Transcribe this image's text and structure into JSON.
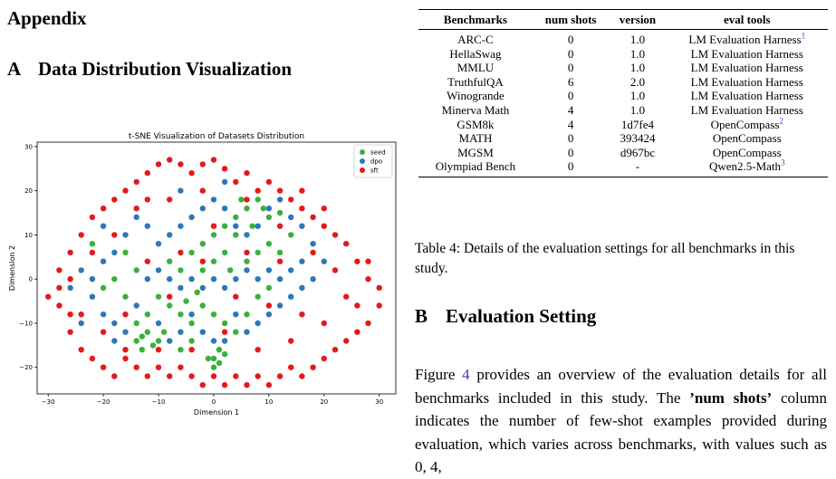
{
  "left": {
    "appendix_heading": "Appendix",
    "section_a": {
      "num": "A",
      "title": "Data Distribution Visualization"
    }
  },
  "chart_data": {
    "type": "scatter",
    "title": "t-SNE Visualization of Datasets Distribution",
    "xlabel": "Dimension 1",
    "ylabel": "Dimension 2",
    "xlim": [
      -32,
      33
    ],
    "ylim": [
      -26,
      31
    ],
    "xticks": [
      -30,
      -20,
      -10,
      0,
      10,
      20,
      30
    ],
    "yticks": [
      -20,
      -10,
      0,
      10,
      20,
      30
    ],
    "grid": false,
    "legend_position": "top-right",
    "series": [
      {
        "name": "seed",
        "color": "#3bb03b",
        "points": [
          [
            -14,
            -14
          ],
          [
            -13,
            -13
          ],
          [
            -12,
            -12
          ],
          [
            -11,
            -15
          ],
          [
            -10,
            -14
          ],
          [
            -13,
            -16
          ],
          [
            -9,
            -12
          ],
          [
            0,
            -18
          ],
          [
            1,
            -19
          ],
          [
            0,
            -20
          ],
          [
            -1,
            -18
          ],
          [
            2,
            -17
          ],
          [
            1,
            -16
          ],
          [
            -4,
            -10
          ],
          [
            -6,
            -8
          ],
          [
            -8,
            -6
          ],
          [
            -10,
            -4
          ],
          [
            -5,
            -5
          ],
          [
            -3,
            -3
          ],
          [
            -6,
            2
          ],
          [
            -8,
            4
          ],
          [
            -4,
            6
          ],
          [
            -2,
            8
          ],
          [
            0,
            10
          ],
          [
            2,
            12
          ],
          [
            4,
            14
          ],
          [
            6,
            16
          ],
          [
            8,
            18
          ],
          [
            5,
            18
          ],
          [
            9,
            16
          ],
          [
            10,
            14
          ],
          [
            12,
            15
          ],
          [
            7,
            12
          ],
          [
            4,
            10
          ],
          [
            2,
            6
          ],
          [
            0,
            4
          ],
          [
            -2,
            2
          ],
          [
            3,
            2
          ],
          [
            6,
            4
          ],
          [
            8,
            6
          ],
          [
            10,
            8
          ],
          [
            12,
            6
          ],
          [
            -16,
            6
          ],
          [
            -14,
            2
          ],
          [
            -18,
            0
          ],
          [
            -16,
            -4
          ],
          [
            -20,
            -2
          ],
          [
            -12,
            -8
          ],
          [
            -2,
            -6
          ],
          [
            0,
            -8
          ],
          [
            2,
            -10
          ],
          [
            4,
            -12
          ],
          [
            6,
            -8
          ],
          [
            8,
            -4
          ],
          [
            10,
            -2
          ],
          [
            -4,
            -14
          ],
          [
            -6,
            -16
          ],
          [
            14,
            10
          ],
          [
            -22,
            8
          ],
          [
            -14,
            -10
          ]
        ]
      },
      {
        "name": "dpo",
        "color": "#2e77b8",
        "points": [
          [
            -24,
            2
          ],
          [
            -22,
            0
          ],
          [
            -20,
            4
          ],
          [
            -18,
            6
          ],
          [
            -22,
            -4
          ],
          [
            -20,
            -8
          ],
          [
            -18,
            -10
          ],
          [
            -16,
            -12
          ],
          [
            -14,
            -6
          ],
          [
            -12,
            0
          ],
          [
            -10,
            2
          ],
          [
            -8,
            0
          ],
          [
            -6,
            -2
          ],
          [
            -4,
            0
          ],
          [
            -2,
            -2
          ],
          [
            0,
            0
          ],
          [
            2,
            -2
          ],
          [
            4,
            0
          ],
          [
            6,
            2
          ],
          [
            8,
            0
          ],
          [
            10,
            2
          ],
          [
            12,
            0
          ],
          [
            14,
            2
          ],
          [
            16,
            4
          ],
          [
            -10,
            8
          ],
          [
            -8,
            10
          ],
          [
            -6,
            12
          ],
          [
            -4,
            14
          ],
          [
            -2,
            16
          ],
          [
            0,
            18
          ],
          [
            2,
            16
          ],
          [
            4,
            12
          ],
          [
            6,
            10
          ],
          [
            8,
            12
          ],
          [
            10,
            16
          ],
          [
            12,
            18
          ],
          [
            14,
            14
          ],
          [
            -14,
            14
          ],
          [
            -12,
            12
          ],
          [
            -16,
            10
          ],
          [
            -10,
            -10
          ],
          [
            -8,
            -14
          ],
          [
            -6,
            -12
          ],
          [
            -4,
            -8
          ],
          [
            -2,
            -12
          ],
          [
            0,
            -14
          ],
          [
            2,
            -14
          ],
          [
            4,
            -8
          ],
          [
            6,
            -12
          ],
          [
            8,
            -10
          ],
          [
            10,
            -8
          ],
          [
            12,
            -6
          ],
          [
            14,
            -4
          ],
          [
            16,
            -2
          ],
          [
            18,
            0
          ],
          [
            -24,
            -10
          ],
          [
            -26,
            -2
          ],
          [
            -20,
            12
          ],
          [
            -6,
            20
          ],
          [
            2,
            22
          ],
          [
            16,
            12
          ],
          [
            18,
            8
          ],
          [
            20,
            4
          ],
          [
            -18,
            -14
          ]
        ]
      },
      {
        "name": "sft",
        "color": "#e31a1c",
        "points": [
          [
            -30,
            -4
          ],
          [
            -28,
            2
          ],
          [
            -28,
            -6
          ],
          [
            -26,
            6
          ],
          [
            -26,
            -12
          ],
          [
            -24,
            10
          ],
          [
            -24,
            -16
          ],
          [
            -22,
            14
          ],
          [
            -22,
            -18
          ],
          [
            -20,
            16
          ],
          [
            -20,
            -20
          ],
          [
            -18,
            18
          ],
          [
            -18,
            -22
          ],
          [
            -16,
            20
          ],
          [
            -14,
            22
          ],
          [
            -12,
            24
          ],
          [
            -10,
            26
          ],
          [
            -8,
            27
          ],
          [
            -6,
            26
          ],
          [
            -4,
            24
          ],
          [
            -2,
            26
          ],
          [
            0,
            27
          ],
          [
            2,
            25
          ],
          [
            4,
            22
          ],
          [
            6,
            24
          ],
          [
            8,
            20
          ],
          [
            10,
            22
          ],
          [
            12,
            20
          ],
          [
            14,
            18
          ],
          [
            16,
            16
          ],
          [
            18,
            14
          ],
          [
            20,
            12
          ],
          [
            22,
            10
          ],
          [
            24,
            8
          ],
          [
            26,
            4
          ],
          [
            28,
            0
          ],
          [
            30,
            -2
          ],
          [
            30,
            -6
          ],
          [
            28,
            -10
          ],
          [
            26,
            -12
          ],
          [
            24,
            -14
          ],
          [
            22,
            -16
          ],
          [
            20,
            -18
          ],
          [
            18,
            -20
          ],
          [
            16,
            -22
          ],
          [
            14,
            -20
          ],
          [
            12,
            -22
          ],
          [
            10,
            -24
          ],
          [
            8,
            -22
          ],
          [
            6,
            -24
          ],
          [
            4,
            -22
          ],
          [
            2,
            -24
          ],
          [
            0,
            -22
          ],
          [
            -2,
            -24
          ],
          [
            -4,
            -22
          ],
          [
            -6,
            -20
          ],
          [
            -8,
            -22
          ],
          [
            -10,
            -20
          ],
          [
            -12,
            -22
          ],
          [
            -14,
            -20
          ],
          [
            -16,
            -18
          ],
          [
            -24,
            -8
          ],
          [
            -26,
            0
          ],
          [
            -22,
            6
          ],
          [
            -18,
            10
          ],
          [
            -14,
            16
          ],
          [
            -8,
            18
          ],
          [
            -2,
            20
          ],
          [
            6,
            18
          ],
          [
            12,
            12
          ],
          [
            18,
            6
          ],
          [
            22,
            2
          ],
          [
            24,
            -4
          ],
          [
            20,
            -10
          ],
          [
            14,
            -14
          ],
          [
            8,
            -16
          ],
          [
            2,
            -12
          ],
          [
            -4,
            -16
          ],
          [
            -10,
            -16
          ],
          [
            -16,
            -8
          ],
          [
            -20,
            -12
          ],
          [
            -12,
            4
          ],
          [
            -6,
            6
          ],
          [
            0,
            12
          ],
          [
            6,
            6
          ],
          [
            10,
            -6
          ],
          [
            16,
            -8
          ],
          [
            -8,
            -4
          ],
          [
            -2,
            4
          ],
          [
            4,
            -4
          ],
          [
            12,
            4
          ],
          [
            -26,
            -8
          ],
          [
            -28,
            -2
          ],
          [
            28,
            4
          ],
          [
            26,
            -6
          ],
          [
            20,
            16
          ],
          [
            -16,
            -16
          ],
          [
            16,
            20
          ],
          [
            -12,
            18
          ]
        ]
      }
    ]
  },
  "table": {
    "headers": [
      "Benchmarks",
      "num shots",
      "version",
      "eval tools"
    ],
    "rows": [
      {
        "bench": "ARC-C",
        "shots": "0",
        "version": "1.0",
        "tool": "LM Evaluation Harness",
        "sup": "1"
      },
      {
        "bench": "HellaSwag",
        "shots": "0",
        "version": "1.0",
        "tool": "LM Evaluation Harness",
        "sup": ""
      },
      {
        "bench": "MMLU",
        "shots": "0",
        "version": "1.0",
        "tool": "LM Evaluation Harness",
        "sup": ""
      },
      {
        "bench": "TruthfulQA",
        "shots": "6",
        "version": "2.0",
        "tool": "LM Evaluation Harness",
        "sup": ""
      },
      {
        "bench": "Winogrande",
        "shots": "0",
        "version": "1.0",
        "tool": "LM Evaluation Harness",
        "sup": ""
      },
      {
        "bench": "Minerva Math",
        "shots": "4",
        "version": "1.0",
        "tool": "LM Evaluation Harness",
        "sup": ""
      },
      {
        "bench": "GSM8k",
        "shots": "4",
        "version": "1d7fe4",
        "tool": "OpenCompass",
        "sup": "2"
      },
      {
        "bench": "MATH",
        "shots": "0",
        "version": "393424",
        "tool": "OpenCompass",
        "sup": ""
      },
      {
        "bench": "MGSM",
        "shots": "0",
        "version": "d967bc",
        "tool": "OpenCompass",
        "sup": ""
      },
      {
        "bench": "Olympiad Bench",
        "shots": "0",
        "version": "-",
        "tool": "Qwen2.5-Math",
        "sup": "3"
      }
    ],
    "caption": "Table 4: Details of the evaluation settings for all benchmarks in this study."
  },
  "section_b": {
    "num": "B",
    "title": "Evaluation Setting",
    "body_pre": "Figure ",
    "figure_ref": "4",
    "body_mid": " provides an overview of the evaluation details for all benchmarks included in this study. The ",
    "body_bold": "’num shots’",
    "body_post": " column indicates the number of few-shot examples provided during evaluation, which varies across benchmarks, with values such as 0, 4,"
  }
}
